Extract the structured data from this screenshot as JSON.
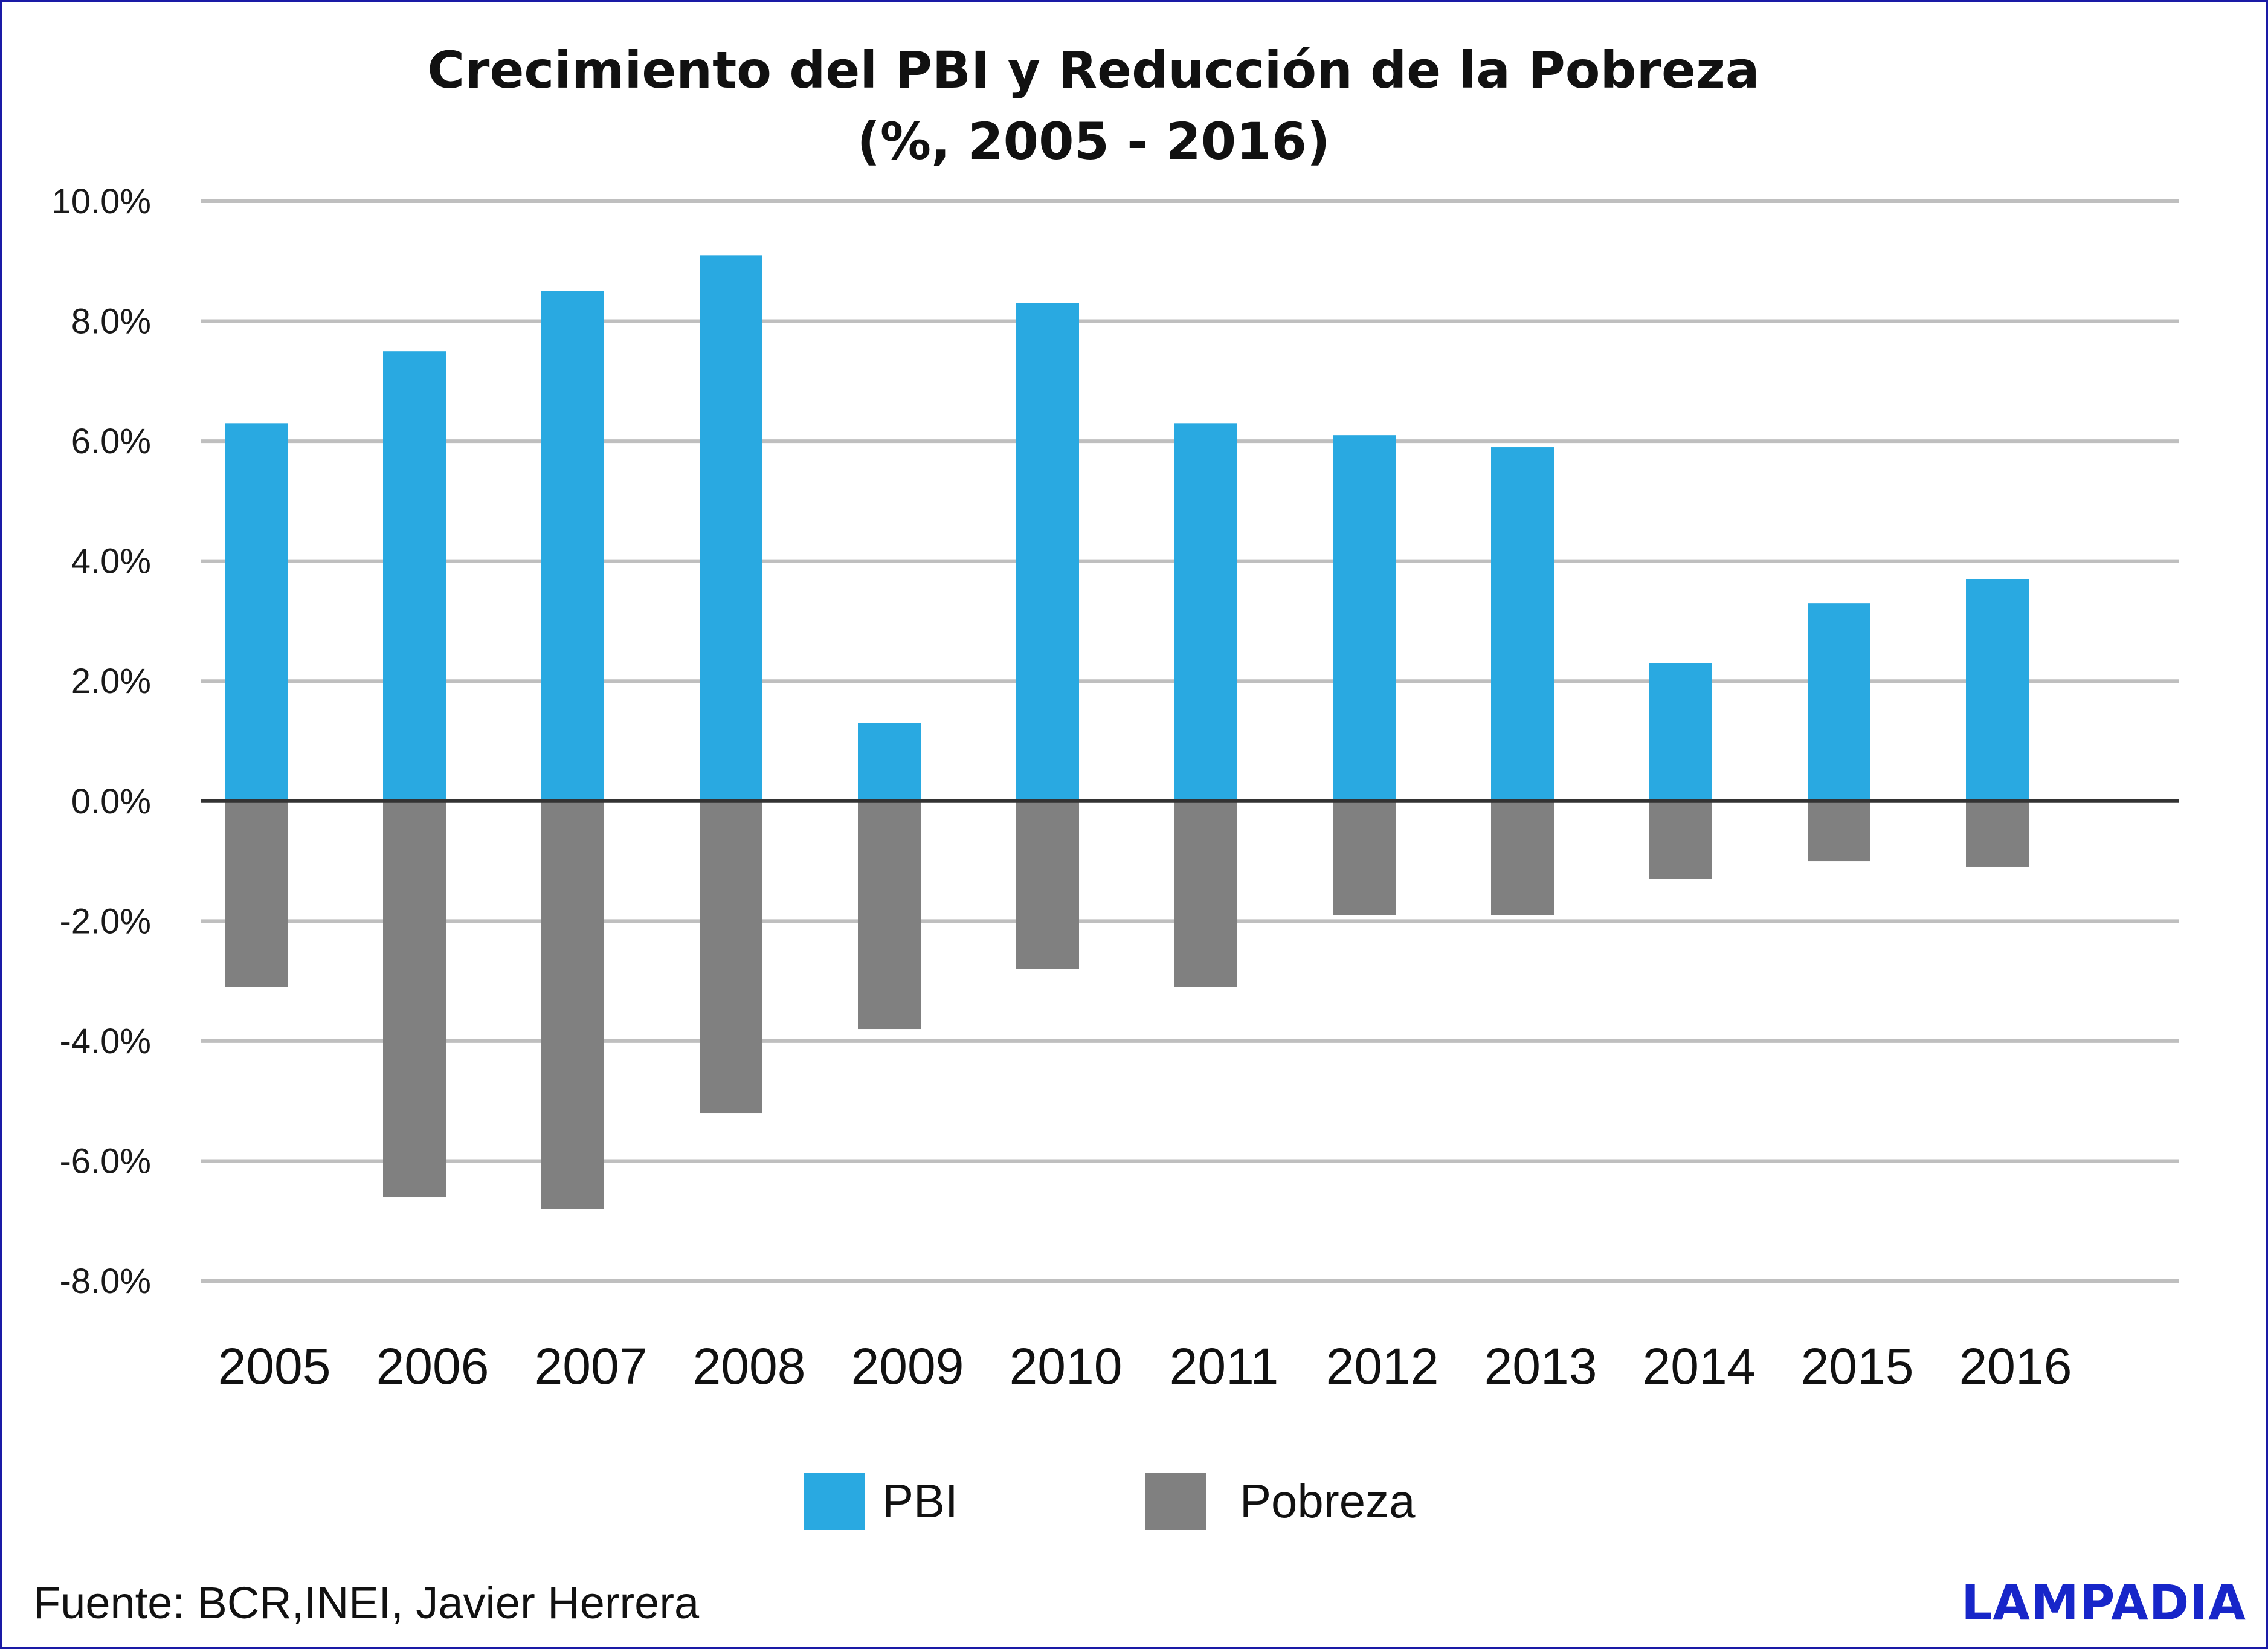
{
  "chart_data": {
    "type": "bar",
    "title": "Crecimiento del PBI y Reducción de la Pobreza",
    "subtitle": "(%, 2005 - 2016)",
    "categories": [
      "2005",
      "2006",
      "2007",
      "2008",
      "2009",
      "2010",
      "2011",
      "2012",
      "2013",
      "2014",
      "2015",
      "2016"
    ],
    "series": [
      {
        "name": "PBI",
        "color": "#29a9e1",
        "values": [
          6.3,
          7.5,
          8.5,
          9.1,
          1.3,
          8.3,
          6.3,
          6.1,
          5.9,
          2.3,
          3.3,
          3.7
        ]
      },
      {
        "name": "Pobreza",
        "color": "#808080",
        "values": [
          -3.1,
          -6.6,
          -6.8,
          -5.2,
          -3.8,
          -2.8,
          -3.1,
          -1.9,
          -1.9,
          -1.3,
          -1.0,
          -1.1
        ]
      }
    ],
    "ylim": [
      -8,
      10
    ],
    "yticks": [
      10,
      8,
      6,
      4,
      2,
      0,
      -2,
      -4,
      -6,
      -8
    ],
    "ytick_labels": [
      "10.0%",
      "8.0%",
      "6.0%",
      "4.0%",
      "2.0%",
      "0.0%",
      "-2.0%",
      "-4.0%",
      "-6.0%",
      "-8.0%"
    ],
    "xlabel": "",
    "ylabel": "",
    "grid": true,
    "legend_position": "bottom-center",
    "stacked": true
  },
  "source": "Fuente: BCR,INEI, Javier Herrera",
  "brand": "LAMPADIA",
  "colors": {
    "border": "#1a1aa6",
    "grid": "#bfbfbf",
    "zero_line": "#333333",
    "brand": "#1726c9"
  }
}
